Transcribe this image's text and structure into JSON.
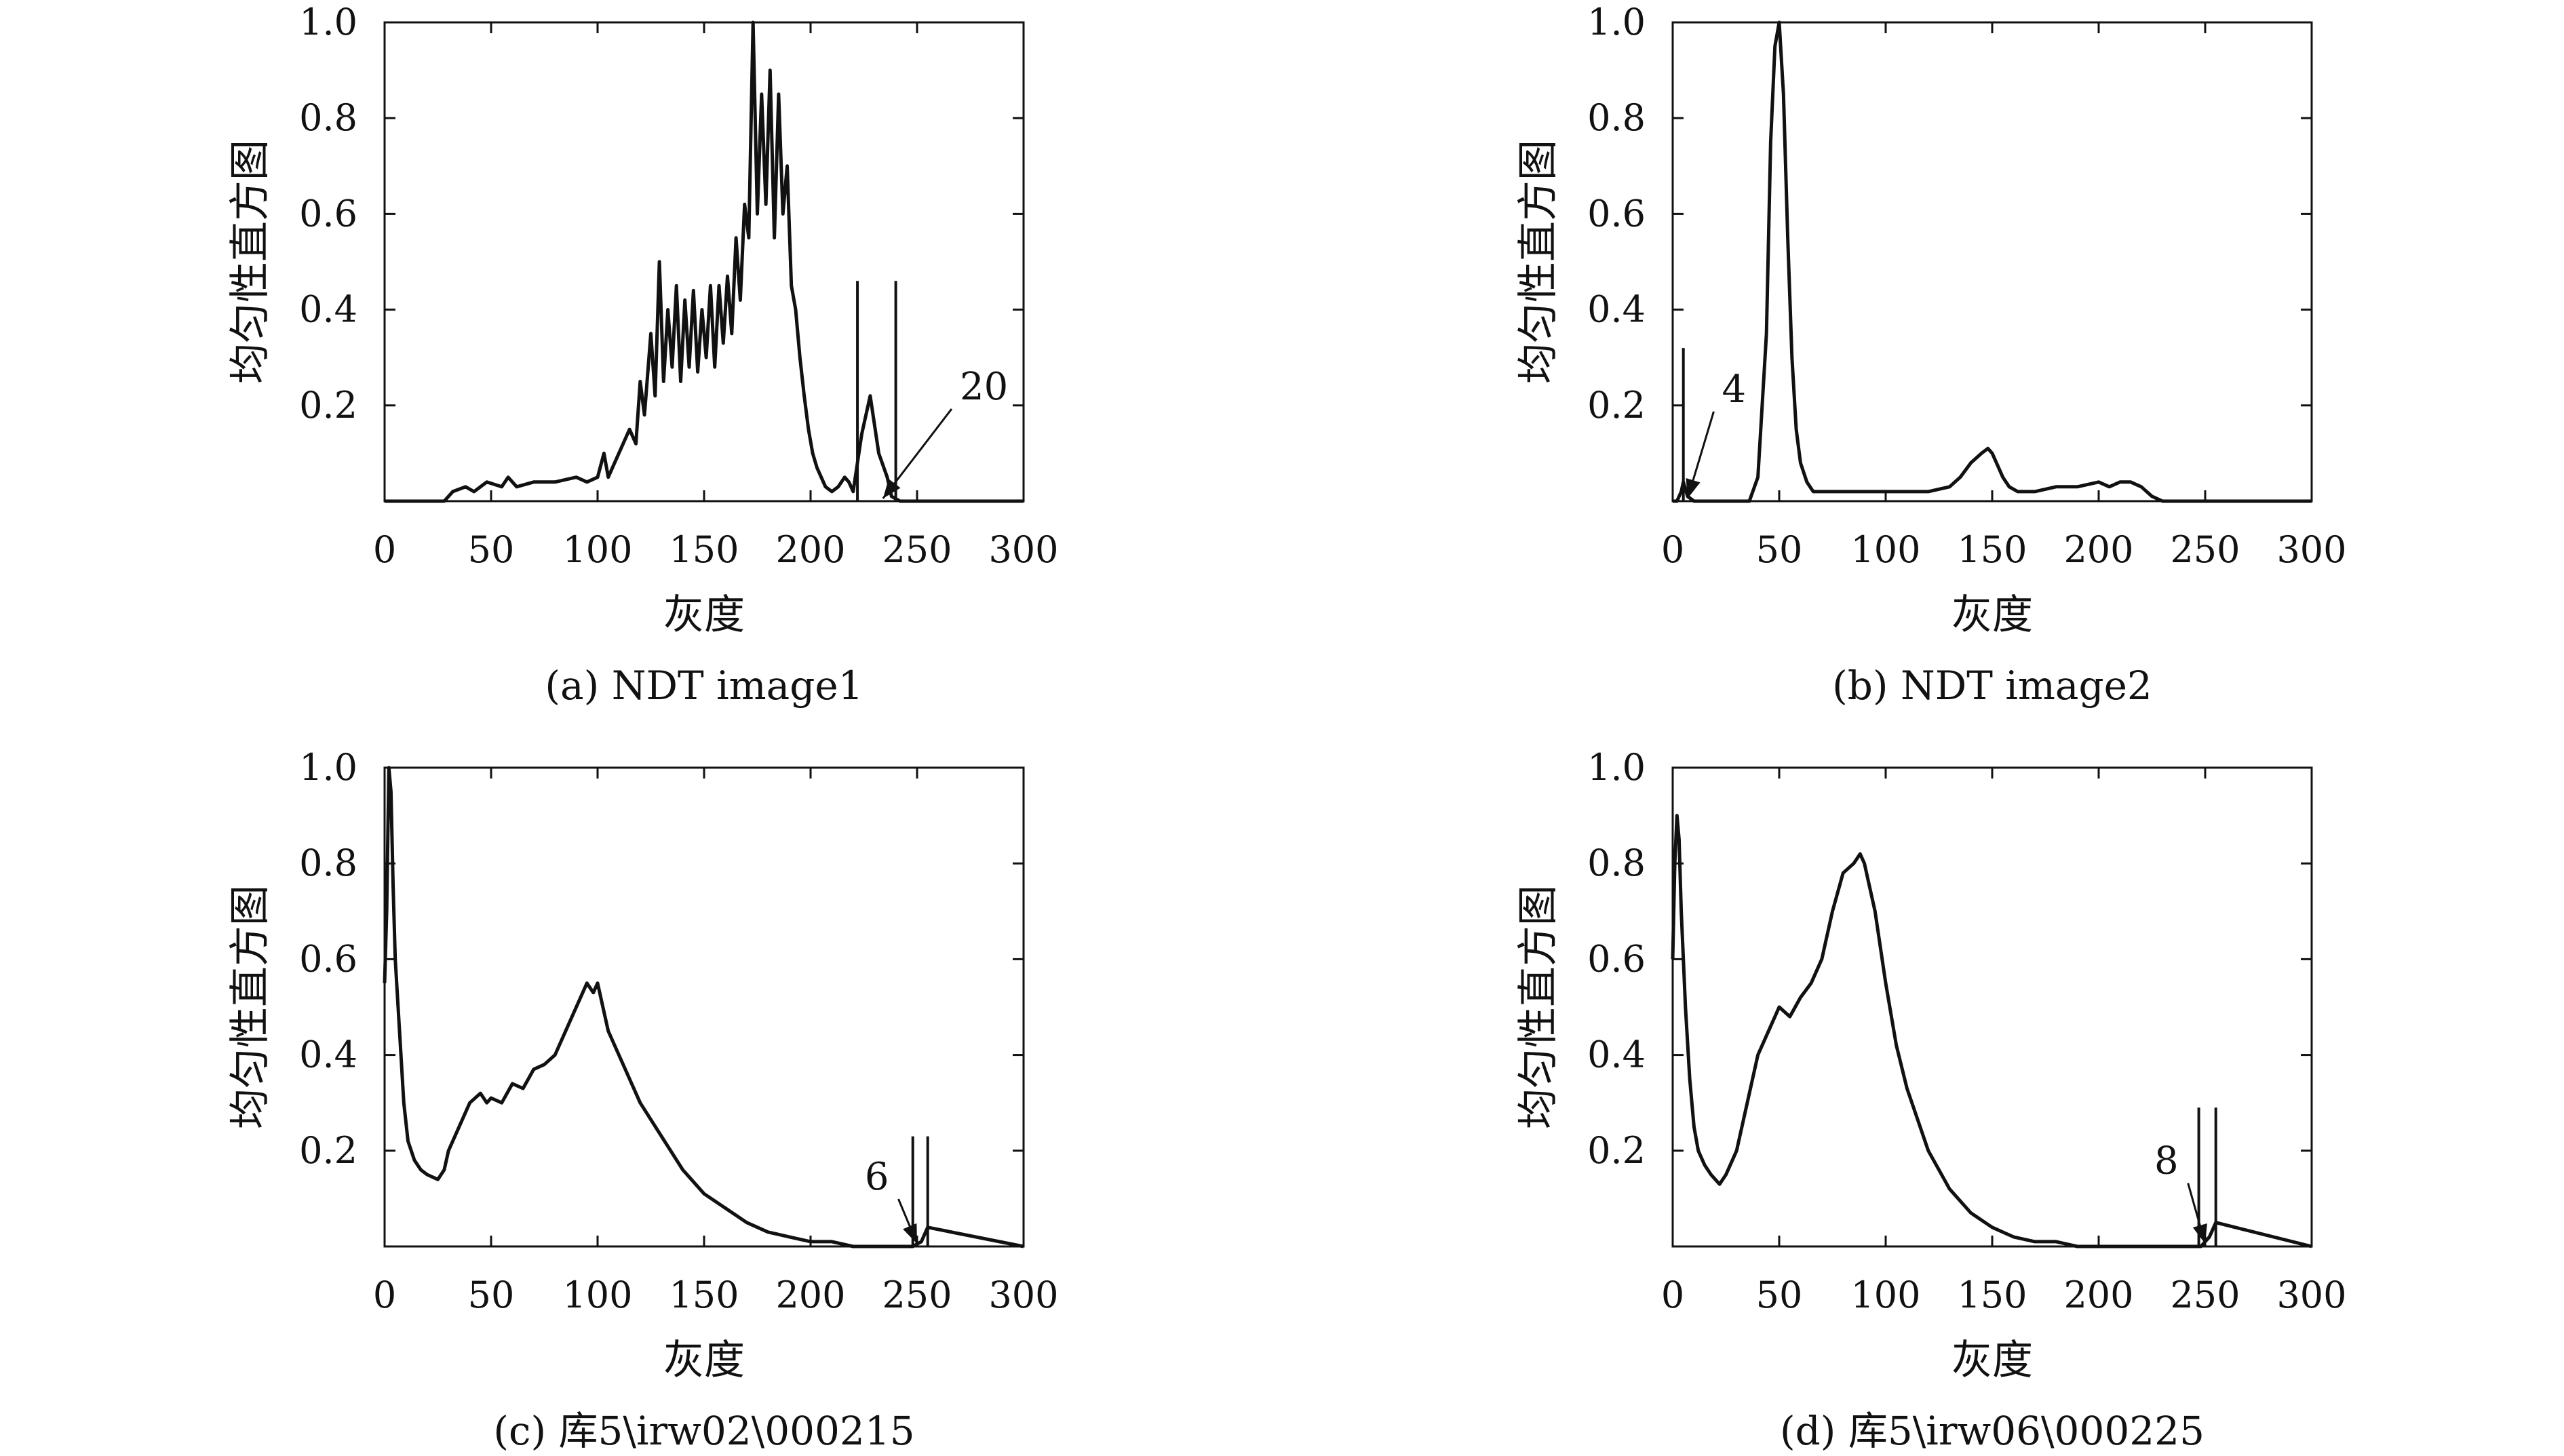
{
  "chart_data": [
    {
      "type": "line",
      "caption": "(a) NDT image1",
      "xlabel": "灰度",
      "ylabel": "均匀性直方图",
      "xlim": [
        0,
        300
      ],
      "ylim": [
        0,
        1.0
      ],
      "xticks": [
        "0",
        "50",
        "100",
        "150",
        "200",
        "250",
        "300"
      ],
      "yticks": [
        "0.2",
        "0.4",
        "0.6",
        "0.8",
        "1.0"
      ],
      "grid": false,
      "annotation": {
        "text": "20",
        "x": 234,
        "y": 0.0
      },
      "spikes": [
        {
          "x": 222,
          "y": 0.46
        },
        {
          "x": 240,
          "y": 0.46
        }
      ],
      "series": [
        {
          "x": [
            0,
            28,
            32,
            38,
            42,
            48,
            55,
            58,
            62,
            70,
            80,
            90,
            95,
            100,
            103,
            105,
            108,
            110,
            115,
            118,
            120,
            122,
            125,
            127,
            129,
            131,
            133,
            135,
            137,
            139,
            141,
            143,
            145,
            147,
            149,
            151,
            153,
            155,
            157,
            159,
            161,
            163,
            165,
            167,
            169,
            171,
            173,
            175,
            177,
            179,
            181,
            183,
            185,
            187,
            189,
            191,
            193,
            195,
            197,
            199,
            201,
            203,
            205,
            207,
            210,
            213,
            216,
            218,
            220,
            224,
            228,
            232,
            236,
            238,
            242,
            300
          ],
          "y": [
            0.0,
            0.0,
            0.02,
            0.03,
            0.02,
            0.04,
            0.03,
            0.05,
            0.03,
            0.04,
            0.04,
            0.05,
            0.04,
            0.05,
            0.1,
            0.05,
            0.08,
            0.1,
            0.15,
            0.12,
            0.25,
            0.18,
            0.35,
            0.22,
            0.5,
            0.25,
            0.4,
            0.28,
            0.45,
            0.25,
            0.42,
            0.28,
            0.44,
            0.27,
            0.4,
            0.3,
            0.45,
            0.28,
            0.45,
            0.33,
            0.47,
            0.35,
            0.55,
            0.42,
            0.62,
            0.55,
            1.0,
            0.6,
            0.85,
            0.62,
            0.9,
            0.55,
            0.85,
            0.6,
            0.7,
            0.45,
            0.4,
            0.3,
            0.22,
            0.15,
            0.1,
            0.07,
            0.05,
            0.03,
            0.02,
            0.03,
            0.05,
            0.04,
            0.02,
            0.14,
            0.22,
            0.1,
            0.05,
            0.01,
            0.0,
            0.0
          ]
        }
      ]
    },
    {
      "type": "line",
      "caption": "(b) NDT image2",
      "xlabel": "灰度",
      "ylabel": "均匀性直方图",
      "xlim": [
        0,
        300
      ],
      "ylim": [
        0,
        1.0
      ],
      "xticks": [
        "0",
        "50",
        "100",
        "150",
        "200",
        "250",
        "300"
      ],
      "yticks": [
        "0.2",
        "0.4",
        "0.6",
        "0.8",
        "1.0"
      ],
      "grid": false,
      "annotation": {
        "text": "4",
        "x": 7,
        "y": 0.0
      },
      "spikes": [
        {
          "x": 5,
          "y": 0.32
        }
      ],
      "series": [
        {
          "x": [
            0,
            2,
            4,
            5,
            7,
            10,
            20,
            30,
            36,
            40,
            44,
            46,
            48,
            50,
            52,
            54,
            56,
            58,
            60,
            63,
            66,
            70,
            80,
            100,
            120,
            130,
            135,
            140,
            145,
            148,
            150,
            152,
            155,
            158,
            162,
            170,
            180,
            190,
            200,
            205,
            210,
            215,
            220,
            225,
            230,
            300
          ],
          "y": [
            0.0,
            0.0,
            0.02,
            0.04,
            0.01,
            0.0,
            0.0,
            0.0,
            0.0,
            0.05,
            0.35,
            0.75,
            0.95,
            1.0,
            0.85,
            0.55,
            0.3,
            0.15,
            0.08,
            0.04,
            0.02,
            0.02,
            0.02,
            0.02,
            0.02,
            0.03,
            0.05,
            0.08,
            0.1,
            0.11,
            0.1,
            0.08,
            0.05,
            0.03,
            0.02,
            0.02,
            0.03,
            0.03,
            0.04,
            0.03,
            0.04,
            0.04,
            0.03,
            0.01,
            0.0,
            0.0
          ]
        }
      ]
    },
    {
      "type": "line",
      "caption": "(c) 库5\\irw02\\000215",
      "xlabel": "灰度",
      "ylabel": "均匀性直方图",
      "xlim": [
        0,
        300
      ],
      "ylim": [
        0,
        1.0
      ],
      "xticks": [
        "0",
        "50",
        "100",
        "150",
        "200",
        "250",
        "300"
      ],
      "yticks": [
        "0.2",
        "0.4",
        "0.6",
        "0.8",
        "1.0"
      ],
      "grid": false,
      "annotation": {
        "text": "6",
        "x": 250,
        "y": 0.0
      },
      "spikes": [
        {
          "x": 248,
          "y": 0.23
        },
        {
          "x": 255,
          "y": 0.23
        }
      ],
      "series": [
        {
          "x": [
            0,
            1,
            2,
            3,
            4,
            5,
            7,
            9,
            11,
            14,
            17,
            20,
            25,
            28,
            30,
            35,
            40,
            45,
            48,
            50,
            55,
            60,
            65,
            70,
            75,
            80,
            85,
            90,
            95,
            98,
            100,
            105,
            110,
            120,
            130,
            140,
            150,
            160,
            170,
            180,
            190,
            200,
            210,
            220,
            230,
            240,
            248,
            252,
            255,
            300
          ],
          "y": [
            0.55,
            0.7,
            1.0,
            0.95,
            0.75,
            0.6,
            0.45,
            0.3,
            0.22,
            0.18,
            0.16,
            0.15,
            0.14,
            0.16,
            0.2,
            0.25,
            0.3,
            0.32,
            0.3,
            0.31,
            0.3,
            0.34,
            0.33,
            0.37,
            0.38,
            0.4,
            0.45,
            0.5,
            0.55,
            0.53,
            0.55,
            0.45,
            0.4,
            0.3,
            0.23,
            0.16,
            0.11,
            0.08,
            0.05,
            0.03,
            0.02,
            0.01,
            0.01,
            0.0,
            0.0,
            0.0,
            0.0,
            0.01,
            0.04,
            0.0
          ]
        }
      ]
    },
    {
      "type": "line",
      "caption": "(d) 库5\\irw06\\000225",
      "xlabel": "灰度",
      "ylabel": "均匀性直方图",
      "xlim": [
        0,
        300
      ],
      "ylim": [
        0,
        1.0
      ],
      "xticks": [
        "0",
        "50",
        "100",
        "150",
        "200",
        "250",
        "300"
      ],
      "yticks": [
        "0.2",
        "0.4",
        "0.6",
        "0.8",
        "1.0"
      ],
      "grid": false,
      "annotation": {
        "text": "8",
        "x": 250,
        "y": 0.0
      },
      "spikes": [
        {
          "x": 247,
          "y": 0.29
        },
        {
          "x": 255,
          "y": 0.29
        }
      ],
      "series": [
        {
          "x": [
            0,
            1,
            2,
            3,
            4,
            6,
            8,
            10,
            12,
            15,
            18,
            20,
            22,
            25,
            30,
            35,
            40,
            45,
            50,
            55,
            60,
            65,
            70,
            75,
            80,
            85,
            88,
            90,
            95,
            100,
            105,
            110,
            120,
            130,
            140,
            150,
            160,
            170,
            180,
            190,
            200,
            210,
            220,
            230,
            240,
            248,
            252,
            255,
            300
          ],
          "y": [
            0.6,
            0.8,
            0.9,
            0.85,
            0.7,
            0.5,
            0.35,
            0.25,
            0.2,
            0.17,
            0.15,
            0.14,
            0.13,
            0.15,
            0.2,
            0.3,
            0.4,
            0.45,
            0.5,
            0.48,
            0.52,
            0.55,
            0.6,
            0.7,
            0.78,
            0.8,
            0.82,
            0.8,
            0.7,
            0.55,
            0.42,
            0.33,
            0.2,
            0.12,
            0.07,
            0.04,
            0.02,
            0.01,
            0.01,
            0.0,
            0.0,
            0.0,
            0.0,
            0.0,
            0.0,
            0.0,
            0.02,
            0.05,
            0.0
          ]
        }
      ]
    }
  ]
}
